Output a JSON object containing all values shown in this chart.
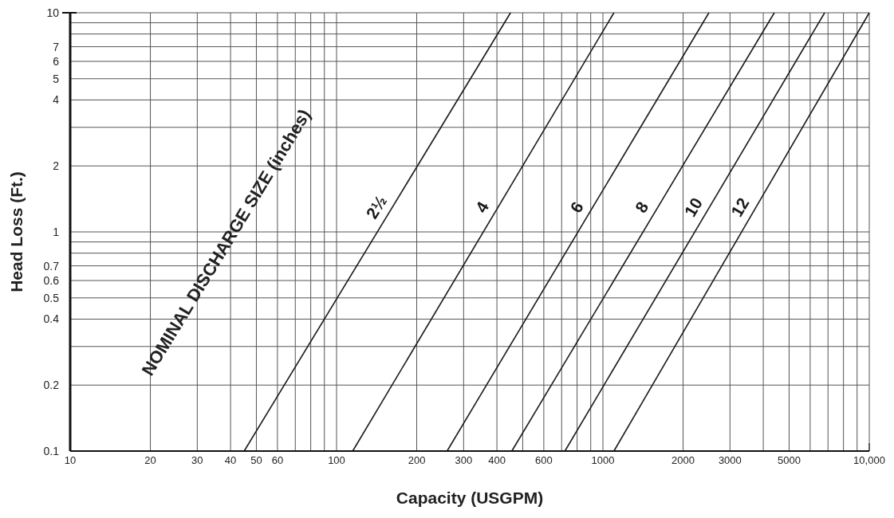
{
  "chart_data": {
    "type": "line",
    "xlabel": "Capacity (USGPM)",
    "ylabel": "Head Loss (Ft.)",
    "annotations": [
      "NOMINAL DISCHARGE SIZE (inches)"
    ],
    "log": "xy",
    "grid": true,
    "marker": "none",
    "line_style": "solid",
    "xlim": [
      10,
      10000
    ],
    "ylim": [
      0.1,
      10
    ],
    "xticks": [
      10,
      20,
      30,
      40,
      50,
      60,
      {
        "value": 70,
        "label": null
      },
      {
        "value": 80,
        "label": null
      },
      {
        "value": 90,
        "label": null
      },
      100,
      200,
      300,
      400,
      {
        "value": 500,
        "label": null
      },
      600,
      {
        "value": 700,
        "label": null
      },
      {
        "value": 800,
        "label": null
      },
      {
        "value": 900,
        "label": null
      },
      1000,
      2000,
      3000,
      {
        "value": 4000,
        "label": null
      },
      5000,
      {
        "value": 6000,
        "label": null
      },
      {
        "value": 7000,
        "label": null
      },
      {
        "value": 8000,
        "label": null
      },
      {
        "value": 9000,
        "label": null
      },
      {
        "value": 10000,
        "label": "10,000"
      }
    ],
    "yticks": [
      0.1,
      0.2,
      {
        "value": 0.3,
        "label": null
      },
      0.4,
      0.5,
      0.6,
      0.7,
      {
        "value": 0.8,
        "label": null
      },
      {
        "value": 0.9,
        "label": null
      },
      1,
      2,
      {
        "value": 3,
        "label": null
      },
      4,
      5,
      6,
      7,
      {
        "value": 8,
        "label": null
      },
      {
        "value": 9,
        "label": null
      },
      10
    ],
    "series": [
      {
        "name": "2½",
        "color": "#1a1a1a",
        "x": [
          45,
          450
        ],
        "values": [
          0.1,
          10
        ]
      },
      {
        "name": "4",
        "color": "#1a1a1a",
        "x": [
          115,
          1100
        ],
        "values": [
          0.1,
          10
        ]
      },
      {
        "name": "6",
        "color": "#1a1a1a",
        "x": [
          260,
          2500
        ],
        "values": [
          0.1,
          10
        ]
      },
      {
        "name": "8",
        "color": "#1a1a1a",
        "x": [
          455,
          4400
        ],
        "values": [
          0.1,
          10
        ]
      },
      {
        "name": "10",
        "color": "#1a1a1a",
        "x": [
          720,
          6800
        ],
        "values": [
          0.1,
          10
        ]
      },
      {
        "name": "12",
        "color": "#1a1a1a",
        "x": [
          1100,
          10000
        ],
        "values": [
          0.1,
          10
        ]
      }
    ]
  }
}
